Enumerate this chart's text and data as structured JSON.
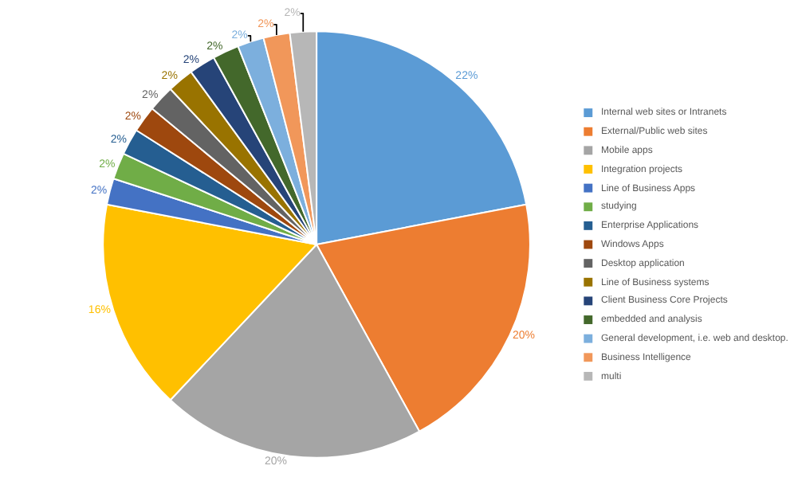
{
  "chart_data": {
    "type": "pie",
    "categories": [
      "Internal web sites or Intranets",
      "External/Public web sites",
      "Mobile apps",
      "Integration projects",
      "Line of Business Apps",
      "studying",
      "Enterprise Applications",
      "Windows Apps",
      "Desktop application",
      "Line of Business systems",
      "Client Business Core Projects",
      "embedded and analysis",
      "General development, i.e. web and desktop.",
      "Business Intelligence",
      "multi"
    ],
    "values": [
      22,
      20,
      20,
      16,
      2,
      2,
      2,
      2,
      2,
      2,
      2,
      2,
      2,
      2,
      2
    ],
    "value_labels": [
      "22%",
      "20%",
      "20%",
      "16%",
      "2%",
      "2%",
      "2%",
      "2%",
      "2%",
      "2%",
      "2%",
      "2%",
      "2%",
      "2%",
      "2%"
    ],
    "colors": [
      "#5b9bd5",
      "#ed7d31",
      "#a5a5a5",
      "#ffc000",
      "#4472c4",
      "#70ad47",
      "#255e91",
      "#9e480e",
      "#636363",
      "#997300",
      "#264478",
      "#43682b",
      "#7cafdd",
      "#f1975a",
      "#b7b7b7"
    ],
    "legend": "right"
  }
}
